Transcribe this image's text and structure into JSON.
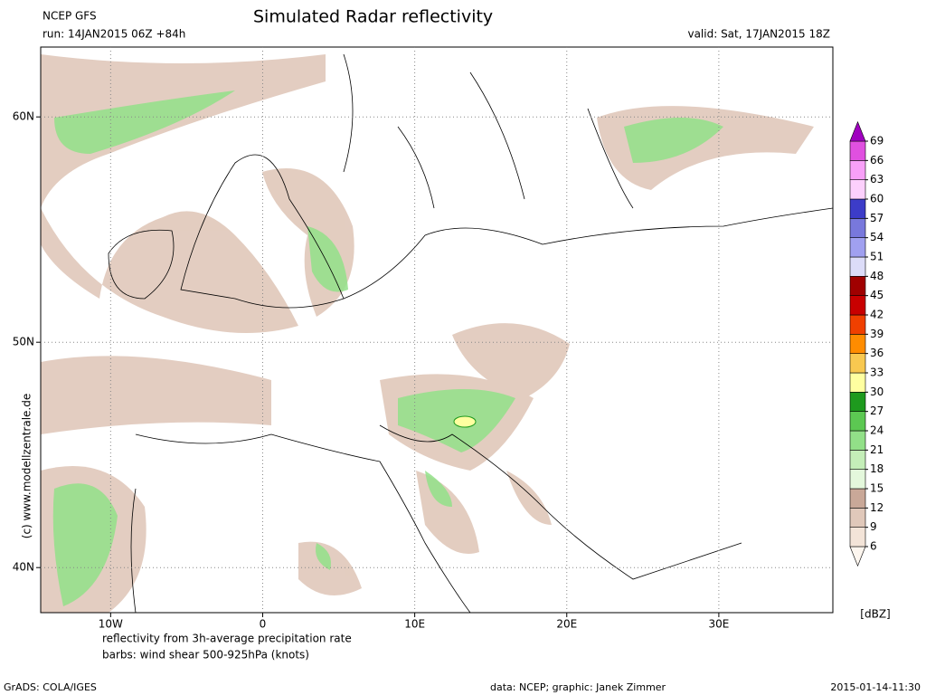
{
  "header": {
    "model": "NCEP GFS",
    "run": "run: 14JAN2015 06Z +84h",
    "title": "Simulated Radar reflectivity",
    "valid": "valid: Sat, 17JAN2015 18Z"
  },
  "map": {
    "xlim": [
      -14.6,
      37.5
    ],
    "ylim": [
      38,
      63.1
    ],
    "xticks": [
      {
        "value": -10,
        "label": "10W"
      },
      {
        "value": 0,
        "label": "0"
      },
      {
        "value": 10,
        "label": "10E"
      },
      {
        "value": 20,
        "label": "20E"
      },
      {
        "value": 30,
        "label": "30E"
      }
    ],
    "yticks": [
      {
        "value": 40,
        "label": "40N"
      },
      {
        "value": 50,
        "label": "50N"
      },
      {
        "value": 60,
        "label": "60N"
      }
    ],
    "grid": true
  },
  "colorbar": {
    "unit": "[dBZ]",
    "levels": [
      6,
      9,
      12,
      15,
      18,
      21,
      24,
      27,
      30,
      33,
      36,
      39,
      42,
      45,
      48,
      51,
      54,
      57,
      60,
      63,
      66,
      69
    ],
    "colors": [
      "#fdf6ef",
      "#f3e4d8",
      "#e0c8ba",
      "#c9a898",
      "#e4f8dc",
      "#c4eeb8",
      "#92e088",
      "#5cc852",
      "#1e9a1e",
      "#ffffa0",
      "#f8c850",
      "#ff8c00",
      "#f04000",
      "#c80000",
      "#a00000",
      "#dcdcf8",
      "#a0a0f0",
      "#7878dc",
      "#3c3cc8",
      "#fcd0fc",
      "#f8a0f8",
      "#e050e0",
      "#a000c0"
    ]
  },
  "notes": {
    "line1": "reflectivity from 3h-average precipitation rate",
    "line2": "barbs: wind shear 500-925hPa (knots)",
    "copyright": "(c) www.modellzentrale.de"
  },
  "footer": {
    "software": "GrADS: COLA/IGES",
    "credits": "data: NCEP; graphic: Janek Zimmer",
    "timestamp": "2015-01-14-11:30"
  }
}
